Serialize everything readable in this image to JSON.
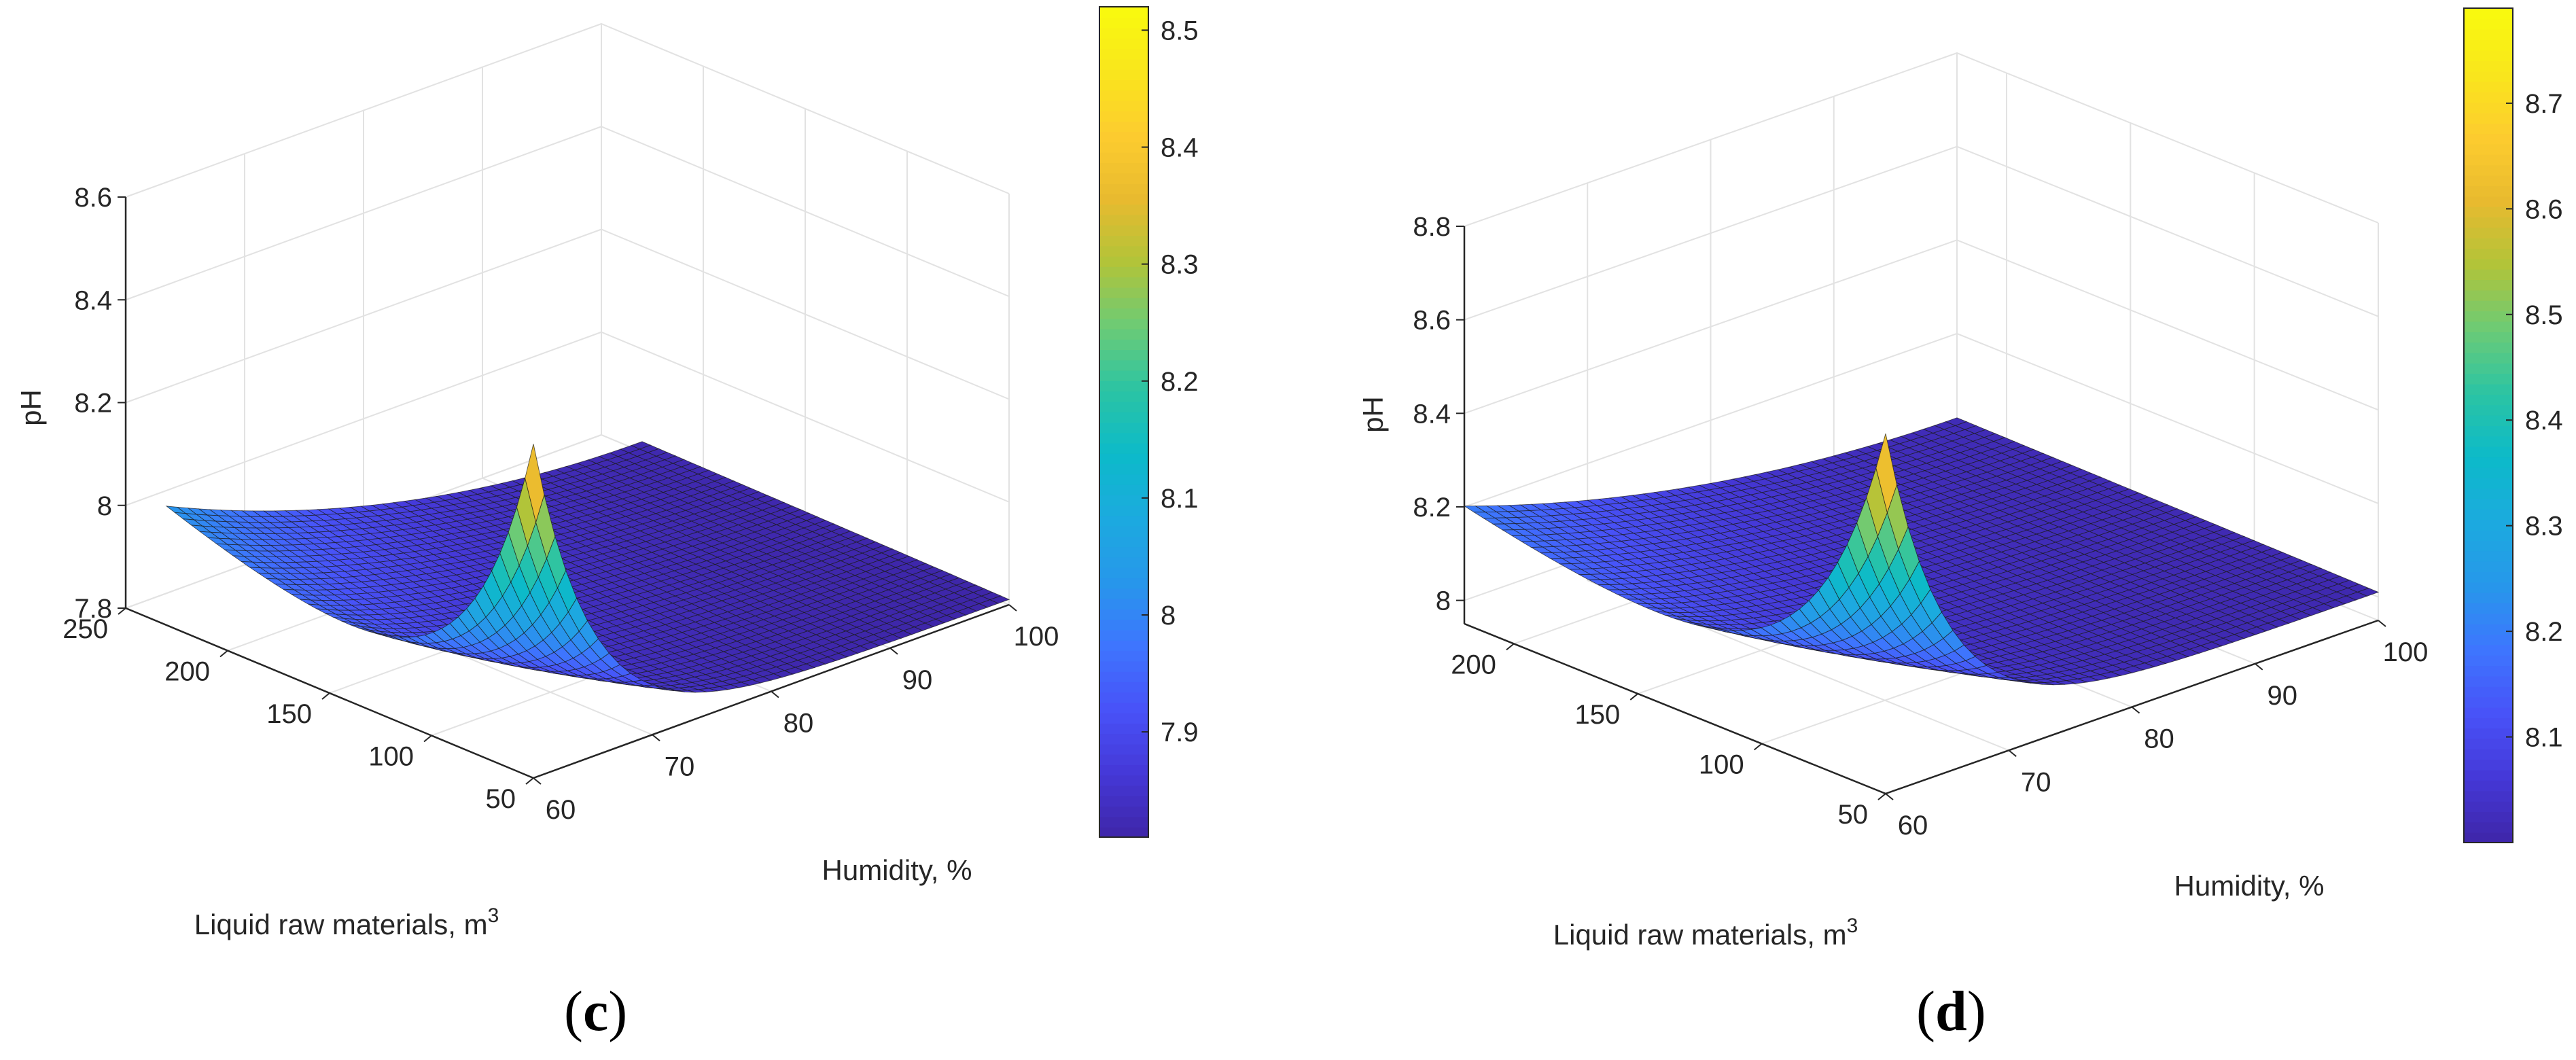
{
  "colors": {
    "grid": "#e2e2e2",
    "axis": "#262626",
    "edge": "#1a1a1a",
    "parula": [
      "#3e26a8",
      "#4538d7",
      "#4852f8",
      "#3e75fe",
      "#2797eb",
      "#1caadf",
      "#0cbac9",
      "#2bc4a4",
      "#6ccb76",
      "#b1c439",
      "#e8ba2f",
      "#fdcc2f",
      "#f9e61c",
      "#f9fb0e"
    ]
  },
  "chart_data": [
    {
      "type": "surface",
      "panel_label": "c",
      "xlabel": "Humidity, %",
      "ylabel_text": "Liquid raw materials, m",
      "ylabel_sup": "3",
      "zlabel": "pH",
      "x_ticks": [
        "60",
        "70",
        "80",
        "90",
        "100"
      ],
      "x_tick_values": [
        60,
        70,
        80,
        90,
        100
      ],
      "y_ticks": [
        "50",
        "100",
        "150",
        "200",
        "250"
      ],
      "y_tick_values": [
        50,
        100,
        150,
        200,
        250
      ],
      "z_ticks": [
        "7.8",
        "8",
        "8.2",
        "8.4",
        "8.6"
      ],
      "z_tick_values": [
        7.8,
        8.0,
        8.2,
        8.4,
        8.6
      ],
      "xlim": [
        60,
        100
      ],
      "ylim": [
        50,
        250
      ],
      "zlim": [
        7.8,
        8.6
      ],
      "surface_x_range": [
        60,
        100
      ],
      "surface_y_range": [
        50,
        230
      ],
      "surface_points": [
        {
          "x": 60,
          "y": 230,
          "z": 8.03
        },
        {
          "x": 60,
          "y": 140,
          "z": 7.9
        },
        {
          "x": 60,
          "y": 50,
          "z": 8.45
        },
        {
          "x": 64,
          "y": 50,
          "z": 8.1
        },
        {
          "x": 70,
          "y": 50,
          "z": 7.96
        },
        {
          "x": 80,
          "y": 50,
          "z": 7.87
        },
        {
          "x": 90,
          "y": 50,
          "z": 7.83
        },
        {
          "x": 100,
          "y": 50,
          "z": 7.81
        },
        {
          "x": 100,
          "y": 230,
          "z": 7.82
        }
      ],
      "colorbar": {
        "min": 7.81,
        "max": 8.52,
        "ticks": [
          "7.9",
          "8",
          "8.1",
          "8.2",
          "8.3",
          "8.4",
          "8.5"
        ],
        "tick_values": [
          7.9,
          8.0,
          8.1,
          8.2,
          8.3,
          8.4,
          8.5
        ]
      },
      "grid": true
    },
    {
      "type": "surface",
      "panel_label": "d",
      "xlabel": "Humidity, %",
      "ylabel_text": "Liquid raw materials, m",
      "ylabel_sup": "3",
      "zlabel": "pH",
      "x_ticks": [
        "60",
        "70",
        "80",
        "90",
        "100"
      ],
      "x_tick_values": [
        60,
        70,
        80,
        90,
        100
      ],
      "y_ticks": [
        "50",
        "100",
        "150",
        "200"
      ],
      "y_tick_values": [
        50,
        100,
        150,
        200
      ],
      "z_ticks": [
        "8",
        "8.2",
        "8.4",
        "8.6",
        "8.8"
      ],
      "z_tick_values": [
        8.0,
        8.2,
        8.4,
        8.6,
        8.8
      ],
      "xlim": [
        60,
        100
      ],
      "ylim": [
        50,
        220
      ],
      "zlim": [
        7.95,
        8.8
      ],
      "surface_x_range": [
        60,
        100
      ],
      "surface_y_range": [
        50,
        220
      ],
      "surface_points": [
        {
          "x": 60,
          "y": 220,
          "z": 8.2
        },
        {
          "x": 60,
          "y": 140,
          "z": 8.15
        },
        {
          "x": 60,
          "y": 50,
          "z": 8.72
        },
        {
          "x": 64,
          "y": 50,
          "z": 8.3
        },
        {
          "x": 70,
          "y": 50,
          "z": 8.12
        },
        {
          "x": 80,
          "y": 50,
          "z": 8.05
        },
        {
          "x": 90,
          "y": 50,
          "z": 8.02
        },
        {
          "x": 100,
          "y": 50,
          "z": 8.01
        },
        {
          "x": 100,
          "y": 220,
          "z": 8.02
        }
      ],
      "colorbar": {
        "min": 8.0,
        "max": 8.79,
        "ticks": [
          "8.1",
          "8.2",
          "8.3",
          "8.4",
          "8.5",
          "8.6",
          "8.7"
        ],
        "tick_values": [
          8.1,
          8.2,
          8.3,
          8.4,
          8.5,
          8.6,
          8.7
        ]
      },
      "grid": true
    }
  ]
}
